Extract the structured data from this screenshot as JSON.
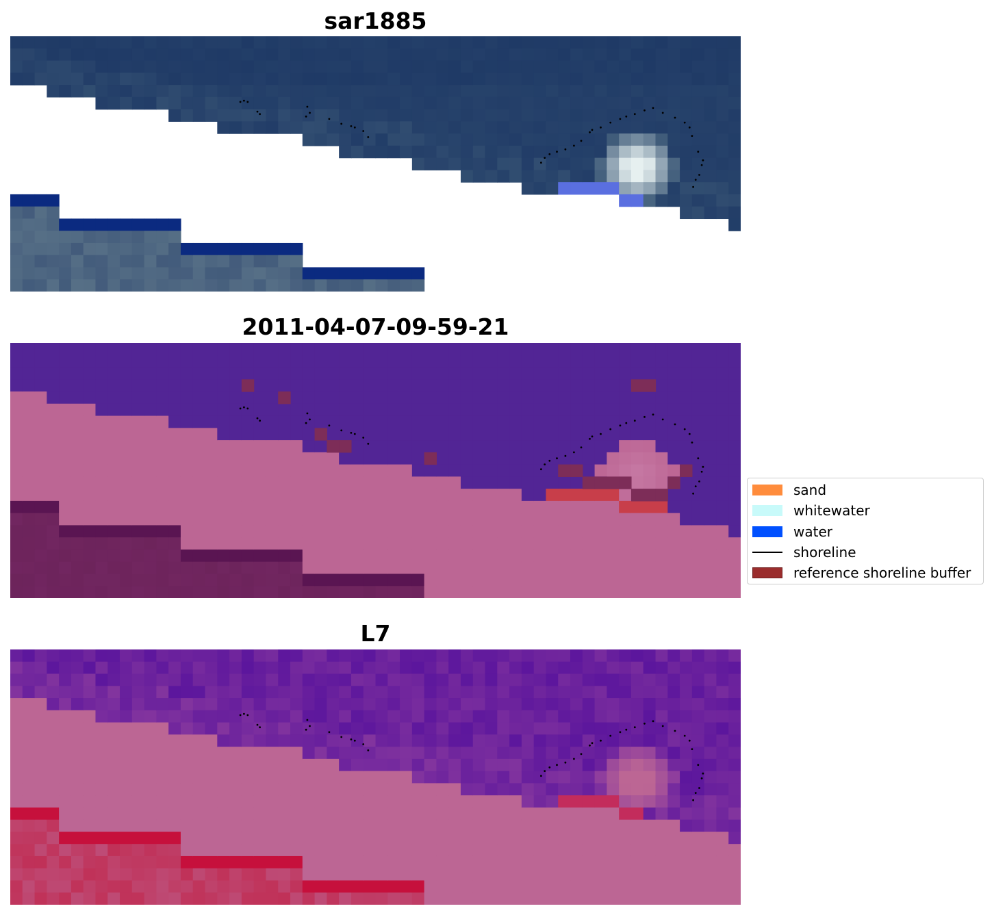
{
  "panels": [
    {
      "title": "sar1885",
      "kind": "rgb"
    },
    {
      "title": "2011-04-07-09-59-21",
      "kind": "classified"
    },
    {
      "title": "L7",
      "kind": "index"
    }
  ],
  "legend": {
    "items": [
      {
        "label": "sand",
        "color": "#ff8c3c",
        "style": "patch"
      },
      {
        "label": "whitewater",
        "color": "#c8fafa",
        "style": "patch"
      },
      {
        "label": "water",
        "color": "#0050ff",
        "style": "patch"
      },
      {
        "label": "shoreline",
        "color": "#000000",
        "style": "line"
      },
      {
        "label": "reference shoreline buffer",
        "color": "#9b2d2d",
        "style": "patch"
      }
    ]
  },
  "colors": {
    "rgb_sea": "#1f3a66",
    "rgb_sea_light": "#3d5a78",
    "rgb_land": "#566f86",
    "rgb_land_blue": "#0b2a80",
    "rgb_whitewater": "#e6f0f0",
    "class_water": "#522595",
    "class_land": "#bc6694",
    "class_land_dark": "#712660",
    "class_buffer": "#7d2d58",
    "class_red": "#c83e4a",
    "index_water": "#5c169d",
    "index_land": "#bc6694",
    "index_land_red": "#c03158",
    "index_mid": "#8a3a9e"
  }
}
